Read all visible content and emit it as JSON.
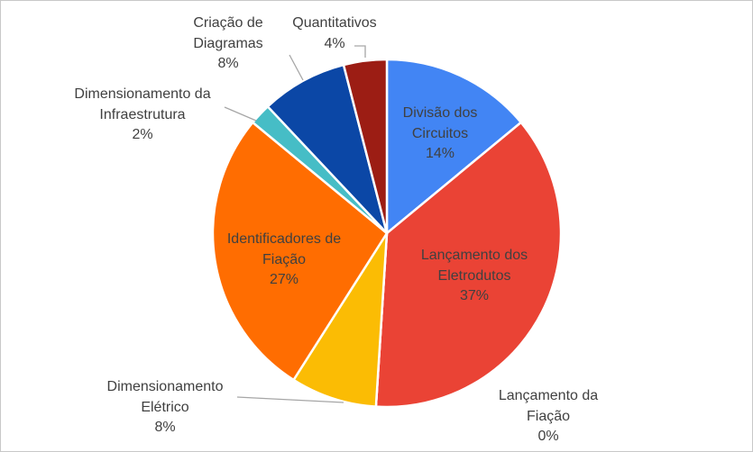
{
  "chart_data": {
    "type": "pie",
    "categories": [
      "Divisão dos Circuitos",
      "Lançamento dos Eletrodutos",
      "Lançamento da Fiação",
      "Dimensionamento Elétrico",
      "Identificadores de Fiação",
      "Dimensionamento da Infraestrutura",
      "Criação de Diagramas",
      "Quantitativos"
    ],
    "values": [
      14,
      37,
      0,
      8,
      27,
      2,
      8,
      4
    ],
    "value_labels": [
      "14%",
      "37%",
      "0%",
      "8%",
      "27%",
      "2%",
      "8%",
      "4%"
    ],
    "colors": [
      "#4285f4",
      "#ea4335",
      "#34a853",
      "#fbbc04",
      "#ff6d01",
      "#46bdc6",
      "#0b47a6",
      "#9c1d14"
    ]
  }
}
